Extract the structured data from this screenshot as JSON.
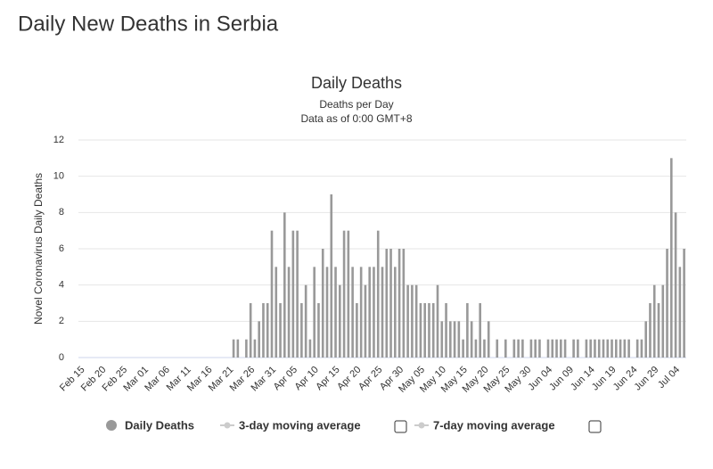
{
  "page_title": "Daily New Deaths in Serbia",
  "chart_data": {
    "type": "bar",
    "title": "Daily Deaths",
    "subtitle": [
      "Deaths per Day",
      "Data as of 0:00 GMT+8"
    ],
    "y_label": "Novel Coronavirus Daily Deaths",
    "categories": [
      "Feb 15",
      null,
      null,
      null,
      null,
      "Feb 20",
      null,
      null,
      null,
      null,
      "Feb 25",
      null,
      null,
      null,
      null,
      "Mar 01",
      null,
      null,
      null,
      null,
      "Mar 06",
      null,
      null,
      null,
      null,
      "Mar 11",
      null,
      null,
      null,
      null,
      "Mar 16",
      null,
      null,
      null,
      null,
      "Mar 21",
      null,
      null,
      null,
      null,
      "Mar 26",
      null,
      null,
      null,
      null,
      "Mar 31",
      null,
      null,
      null,
      null,
      "Apr 05",
      null,
      null,
      null,
      null,
      "Apr 10",
      null,
      null,
      null,
      null,
      "Apr 15",
      null,
      null,
      null,
      null,
      "Apr 20",
      null,
      null,
      null,
      null,
      "Apr 25",
      null,
      null,
      null,
      null,
      "Apr 30",
      null,
      null,
      null,
      null,
      "May 05",
      null,
      null,
      null,
      null,
      "May 10",
      null,
      null,
      null,
      null,
      "May 15",
      null,
      null,
      null,
      null,
      "May 20",
      null,
      null,
      null,
      null,
      "May 25",
      null,
      null,
      null,
      null,
      "May 30",
      null,
      null,
      null,
      null,
      "Jun 04",
      null,
      null,
      null,
      null,
      "Jun 09",
      null,
      null,
      null,
      null,
      "Jun 14",
      null,
      null,
      null,
      null,
      "Jun 19",
      null,
      null,
      null,
      null,
      "Jun 24",
      null,
      null,
      null,
      null,
      "Jun 29",
      null,
      null,
      null,
      null,
      "Jul 04",
      null,
      null
    ],
    "series": [
      {
        "name": "Daily Deaths",
        "color": "#999999",
        "values": [
          0,
          0,
          0,
          0,
          0,
          0,
          0,
          0,
          0,
          0,
          0,
          0,
          0,
          0,
          0,
          0,
          0,
          0,
          0,
          0,
          0,
          0,
          0,
          0,
          0,
          0,
          0,
          0,
          0,
          0,
          0,
          0,
          0,
          0,
          0,
          0,
          1,
          1,
          0,
          1,
          3,
          1,
          2,
          3,
          3,
          7,
          5,
          3,
          8,
          5,
          7,
          7,
          3,
          4,
          1,
          5,
          3,
          6,
          5,
          9,
          5,
          4,
          7,
          7,
          5,
          3,
          5,
          4,
          5,
          5,
          7,
          5,
          6,
          6,
          5,
          6,
          6,
          4,
          4,
          4,
          3,
          3,
          3,
          3,
          4,
          2,
          3,
          2,
          2,
          2,
          1,
          3,
          2,
          1,
          3,
          1,
          2,
          0,
          1,
          0,
          1,
          0,
          1,
          1,
          1,
          0,
          1,
          1,
          1,
          0,
          1,
          1,
          1,
          1,
          1,
          0,
          1,
          1,
          0,
          1,
          1,
          1,
          1,
          1,
          1,
          1,
          1,
          1,
          1,
          1,
          0,
          1,
          1,
          2,
          3,
          4,
          3,
          4,
          6,
          11,
          8,
          5,
          6
        ]
      }
    ],
    "inactive_legend": [
      "3-day moving average",
      "7-day moving average"
    ],
    "ylim": [
      0,
      12
    ],
    "yticks": [
      0,
      2,
      4,
      6,
      8,
      10,
      12
    ],
    "grid": true
  }
}
